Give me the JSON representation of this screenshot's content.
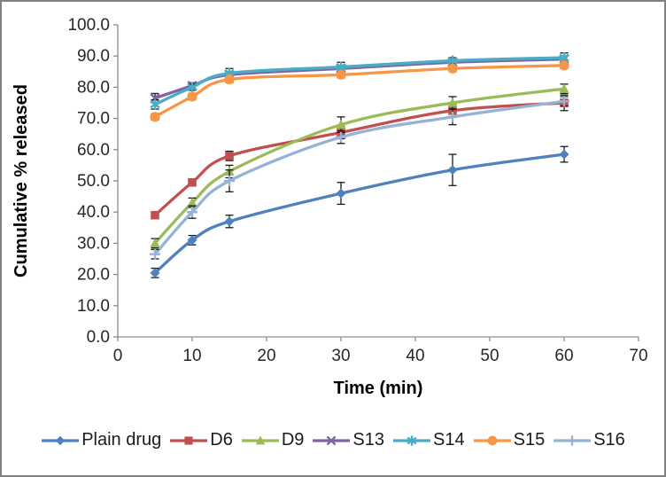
{
  "frame": {
    "border_color": "#808080",
    "background": "#FFFFFF"
  },
  "chart_data": {
    "type": "line",
    "title": "",
    "xlabel": "Time (min)",
    "ylabel": "Cumulative % released",
    "line_style": "smooth",
    "grid": false,
    "legend_position": "bottom",
    "x": [
      5,
      10,
      15,
      30,
      45,
      60
    ],
    "xlim": [
      0,
      70
    ],
    "x_ticks": [
      0,
      10,
      20,
      30,
      40,
      50,
      60,
      70
    ],
    "ylim": [
      0,
      100
    ],
    "y_tick_step": 10,
    "y_tick_decimals": 1,
    "axis_color": "#8C8C8C",
    "tick_label_color": "#262626",
    "error_bar_color": "#1A1A1A",
    "series": [
      {
        "name": "Plain drug",
        "marker": "diamond",
        "color": "#4F81BD",
        "values": [
          20.5,
          31.0,
          37.0,
          46.0,
          53.5,
          58.5
        ],
        "errors": [
          1.5,
          1.5,
          2.0,
          3.5,
          5.0,
          2.5
        ]
      },
      {
        "name": "D6",
        "marker": "square",
        "color": "#C0504D",
        "values": [
          39.0,
          49.5,
          58.0,
          65.5,
          72.5,
          75.0
        ],
        "errors": [
          1.0,
          1.0,
          1.5,
          2.0,
          2.0,
          2.5
        ]
      },
      {
        "name": "D9",
        "marker": "triangle",
        "color": "#9BBB59",
        "values": [
          30.0,
          43.0,
          53.0,
          68.0,
          75.0,
          79.5
        ],
        "errors": [
          1.5,
          1.5,
          2.0,
          2.5,
          2.0,
          1.5
        ]
      },
      {
        "name": "S13",
        "marker": "x",
        "color": "#8064A2",
        "values": [
          76.5,
          80.5,
          84.0,
          86.0,
          88.0,
          89.0
        ],
        "errors": [
          1.5,
          1.0,
          1.0,
          1.0,
          1.0,
          1.0
        ]
      },
      {
        "name": "S14",
        "marker": "asterisk",
        "color": "#4BACC6",
        "values": [
          74.5,
          80.0,
          84.5,
          86.5,
          88.5,
          89.5
        ],
        "errors": [
          1.5,
          1.0,
          1.5,
          1.5,
          1.0,
          1.5
        ]
      },
      {
        "name": "S15",
        "marker": "circle",
        "color": "#F79646",
        "values": [
          70.5,
          77.0,
          82.5,
          84.0,
          86.0,
          87.0
        ],
        "errors": [
          1.0,
          1.0,
          1.0,
          1.0,
          1.0,
          1.0
        ]
      },
      {
        "name": "S16",
        "marker": "plus",
        "color": "#95B3D7",
        "values": [
          26.5,
          40.0,
          50.0,
          64.0,
          70.5,
          75.5
        ],
        "errors": [
          1.5,
          2.0,
          3.5,
          2.0,
          2.5,
          1.5
        ]
      }
    ]
  }
}
